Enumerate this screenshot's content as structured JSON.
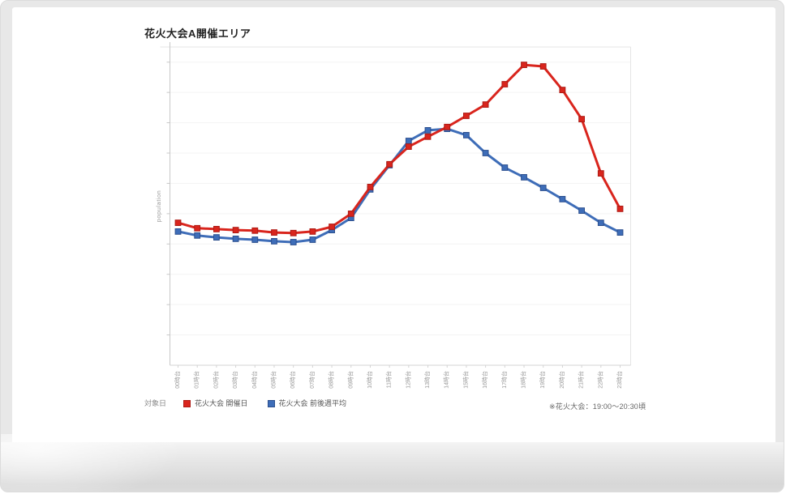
{
  "title": "花火大会A開催エリア",
  "legend": {
    "caption": "対象日",
    "series1": "花火大会 開催日",
    "series2": "花火大会 前後週平均",
    "note": "※花火大会：19:00～20:30頃"
  },
  "chart_data": {
    "type": "line",
    "title": "花火大会A開催エリア",
    "xlabel": "",
    "ylabel": "population",
    "categories": [
      "00時台",
      "01時台",
      "02時台",
      "03時台",
      "04時台",
      "05時台",
      "06時台",
      "07時台",
      "08時台",
      "09時台",
      "10時台",
      "11時台",
      "12時台",
      "13時台",
      "14時台",
      "15時台",
      "16時台",
      "17時台",
      "18時台",
      "19時台",
      "20時台",
      "21時台",
      "22時台",
      "23時台"
    ],
    "series": [
      {
        "key": "festival-day",
        "name": "花火大会 開催日",
        "color": "#d9251d",
        "marker_border": "#ad1b14",
        "values": [
          47.0,
          45.2,
          44.9,
          44.6,
          44.4,
          43.8,
          43.6,
          44.1,
          45.7,
          50.0,
          58.8,
          66.3,
          72.1,
          75.4,
          78.6,
          82.3,
          86.0,
          92.7,
          99.1,
          98.6,
          90.8,
          81.2,
          63.3,
          51.6
        ]
      },
      {
        "key": "weekly-average",
        "name": "花火大会 前後週平均",
        "color": "#3e6db8",
        "marker_border": "#2c4f8e",
        "values": [
          44.1,
          42.8,
          42.2,
          41.7,
          41.4,
          40.9,
          40.6,
          41.4,
          44.6,
          48.6,
          58.0,
          66.0,
          74.0,
          77.5,
          78.0,
          75.9,
          70.0,
          65.2,
          62.0,
          58.5,
          54.8,
          51.0,
          47.0,
          43.8
        ]
      }
    ],
    "ylim": [
      0,
      105
    ],
    "y_tick_count": 10,
    "y_tick_labels_visible": false,
    "x_tick_rotation": -90,
    "grid": true,
    "legend_position": "bottom"
  },
  "colors": {
    "festival_day_red": "#d9251d",
    "weekly_average_blue": "#3e6db8",
    "gridline": "#f3f3f3",
    "axis": "#c8c8c8",
    "tick_label": "#9a9a9a"
  }
}
